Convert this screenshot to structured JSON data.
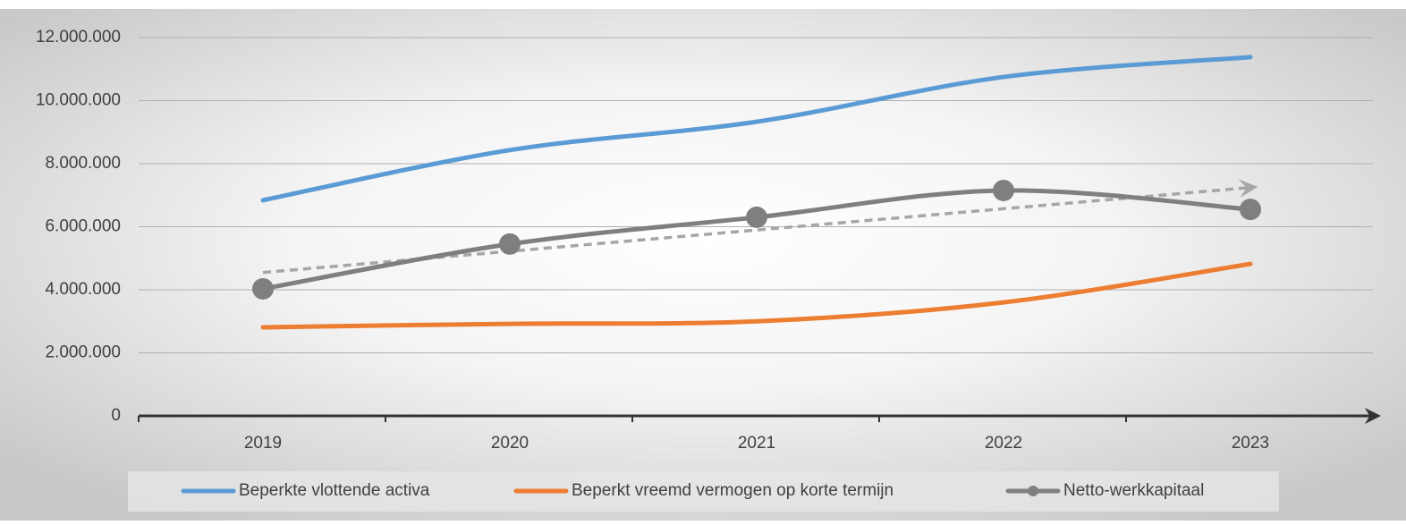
{
  "chart_data": {
    "type": "line",
    "categories": [
      "2019",
      "2020",
      "2021",
      "2022",
      "2023"
    ],
    "series": [
      {
        "name": "Beperkte vlottende activa",
        "color": "#5b9bd5",
        "values": [
          6840000,
          8430000,
          9330000,
          10750000,
          11380000
        ]
      },
      {
        "name": "Beperkt vreemd vermogen op korte termijn",
        "color": "#ed7d31",
        "values": [
          2810000,
          2920000,
          3000000,
          3600000,
          4820000
        ]
      },
      {
        "name": "Netto-werkkapitaal",
        "color": "#7f7f7f",
        "values": [
          4030000,
          5450000,
          6300000,
          7150000,
          6550000
        ],
        "markers": true,
        "trendline": true
      }
    ],
    "ylim": [
      0,
      12000000
    ],
    "yticks": [
      {
        "value": 0,
        "label": "0"
      },
      {
        "value": 2000000,
        "label": "2.000.000"
      },
      {
        "value": 4000000,
        "label": "4.000.000"
      },
      {
        "value": 6000000,
        "label": "6.000.000"
      },
      {
        "value": 8000000,
        "label": "8.000.000"
      },
      {
        "value": 10000000,
        "label": "10.000.000"
      },
      {
        "value": 12000000,
        "label": "12.000.000"
      }
    ],
    "grid": true,
    "smooth": true,
    "legend": "bottom"
  }
}
